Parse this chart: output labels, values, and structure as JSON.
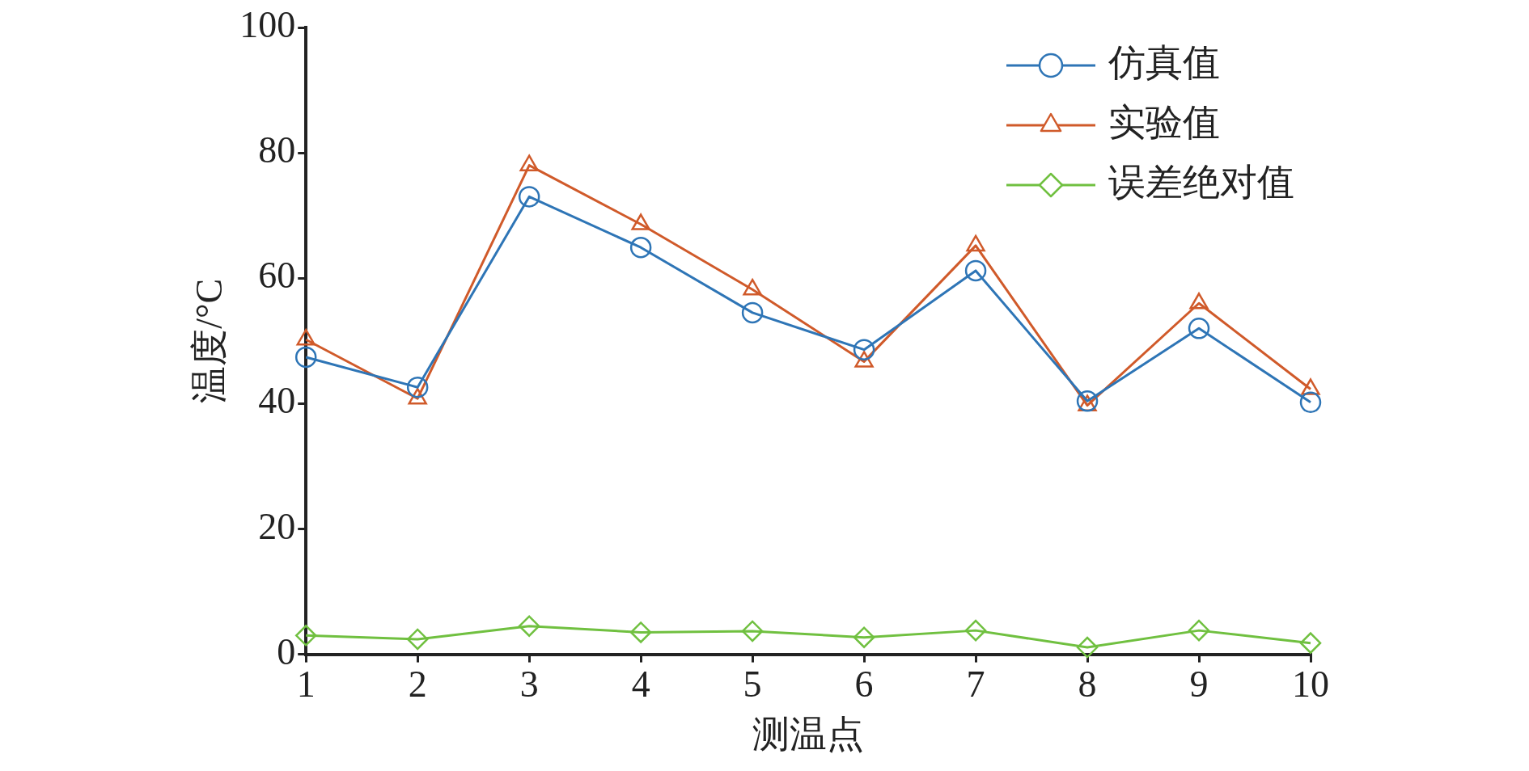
{
  "chart_data": {
    "type": "line",
    "xlabel": "测温点",
    "ylabel": "温度/°C",
    "x": [
      1,
      2,
      3,
      4,
      5,
      6,
      7,
      8,
      9,
      10
    ],
    "xlim": [
      1,
      10
    ],
    "xticks": [
      1,
      2,
      3,
      4,
      5,
      6,
      7,
      8,
      9,
      10
    ],
    "ylim": [
      0,
      100
    ],
    "yticks": [
      0,
      20,
      40,
      60,
      80,
      100
    ],
    "grid": false,
    "legend": "top right",
    "line_style": "solid",
    "series": [
      {
        "name": "仿真值",
        "color": "#2e75b6",
        "marker": "circle",
        "values": [
          47.4,
          42.6,
          73.0,
          64.9,
          54.5,
          48.6,
          61.2,
          40.4,
          52.0,
          40.2
        ]
      },
      {
        "name": "实验值",
        "color": "#d05a2a",
        "marker": "triangle",
        "values": [
          50.2,
          40.8,
          78.0,
          68.6,
          58.2,
          46.7,
          65.2,
          39.7,
          56.0,
          42.3
        ]
      },
      {
        "name": "误差绝对值",
        "color": "#70c040",
        "marker": "diamond",
        "values": [
          3.0,
          2.4,
          4.5,
          3.5,
          3.7,
          2.7,
          3.8,
          1.1,
          3.8,
          1.8
        ]
      }
    ]
  }
}
